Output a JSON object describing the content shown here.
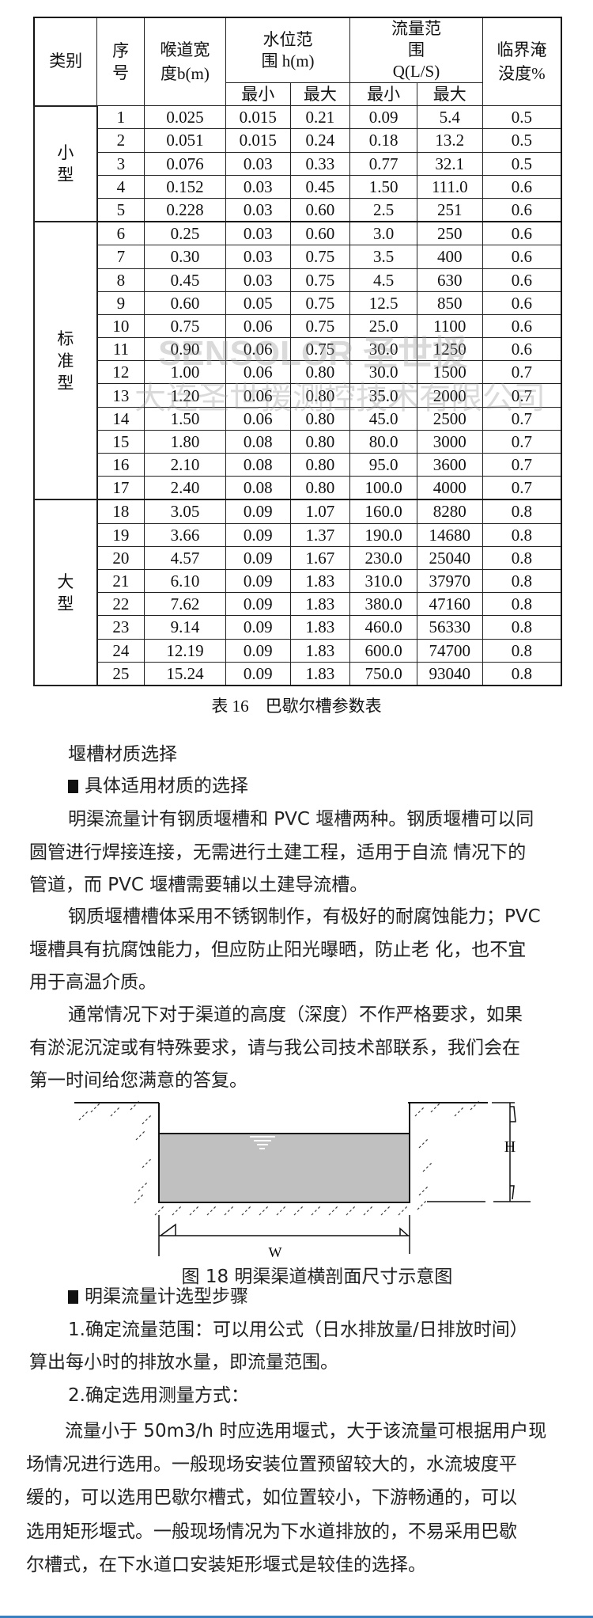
{
  "table": {
    "headers": {
      "category": "类别",
      "seq": "序号",
      "throat": "喉道宽度b(m)",
      "level_range": "水位范围 h(m)",
      "flow_range": "流量范围 Q(L/S)",
      "submergence": "临界淹没度%",
      "min": "最小",
      "max": "最大"
    },
    "groups": [
      {
        "label": "小 型",
        "rows": [
          [
            "1",
            "0.025",
            "0.015",
            "0.21",
            "0.09",
            "5.4",
            "0.5"
          ],
          [
            "2",
            "0.051",
            "0.015",
            "0.24",
            "0.18",
            "13.2",
            "0.5"
          ],
          [
            "3",
            "0.076",
            "0.03",
            "0.33",
            "0.77",
            "32.1",
            "0.5"
          ],
          [
            "4",
            "0.152",
            "0.03",
            "0.45",
            "1.50",
            "111.0",
            "0.6"
          ],
          [
            "5",
            "0.228",
            "0.03",
            "0.60",
            "2.5",
            "251",
            "0.6"
          ]
        ]
      },
      {
        "label": "标准型",
        "rows": [
          [
            "6",
            "0.25",
            "0.03",
            "0.60",
            "3.0",
            "250",
            "0.6"
          ],
          [
            "7",
            "0.30",
            "0.03",
            "0.75",
            "3.5",
            "400",
            "0.6"
          ],
          [
            "8",
            "0.45",
            "0.03",
            "0.75",
            "4.5",
            "630",
            "0.6"
          ],
          [
            "9",
            "0.60",
            "0.05",
            "0.75",
            "12.5",
            "850",
            "0.6"
          ],
          [
            "10",
            "0.75",
            "0.06",
            "0.75",
            "25.0",
            "1100",
            "0.6"
          ],
          [
            "11",
            "0.90",
            "0.06",
            "0.75",
            "30.0",
            "1250",
            "0.6"
          ],
          [
            "12",
            "1.00",
            "0.06",
            "0.80",
            "30.0",
            "1500",
            "0.7"
          ],
          [
            "13",
            "1.20",
            "0.06",
            "0.80",
            "35.0",
            "2000",
            "0.7"
          ],
          [
            "14",
            "1.50",
            "0.06",
            "0.80",
            "45.0",
            "2500",
            "0.7"
          ],
          [
            "15",
            "1.80",
            "0.08",
            "0.80",
            "80.0",
            "3000",
            "0.7"
          ],
          [
            "16",
            "2.10",
            "0.08",
            "0.80",
            "95.0",
            "3600",
            "0.7"
          ],
          [
            "17",
            "2.40",
            "0.08",
            "0.80",
            "100.0",
            "4000",
            "0.7"
          ]
        ]
      },
      {
        "label": "大 型",
        "rows": [
          [
            "18",
            "3.05",
            "0.09",
            "1.07",
            "160.0",
            "8280",
            "0.8"
          ],
          [
            "19",
            "3.66",
            "0.09",
            "1.37",
            "190.0",
            "14680",
            "0.8"
          ],
          [
            "20",
            "4.57",
            "0.09",
            "1.67",
            "230.0",
            "25040",
            "0.8"
          ],
          [
            "21",
            "6.10",
            "0.09",
            "1.83",
            "310.0",
            "37970",
            "0.8"
          ],
          [
            "22",
            "7.62",
            "0.09",
            "1.83",
            "380.0",
            "47160",
            "0.8"
          ],
          [
            "23",
            "9.14",
            "0.09",
            "1.83",
            "460.0",
            "56330",
            "0.8"
          ],
          [
            "24",
            "12.19",
            "0.09",
            "1.83",
            "600.0",
            "74700",
            "0.8"
          ],
          [
            "25",
            "15.24",
            "0.09",
            "1.83",
            "750.0",
            "93040",
            "0.8"
          ]
        ]
      }
    ],
    "caption": "表 16　巴歇尔槽参数表"
  },
  "watermark": {
    "logo": "SENSOLOR 圣世援",
    "company": "大连圣世援测控技术有限公司"
  },
  "section1": {
    "title": "堰槽材质选择",
    "bullet": "具体适用材质的选择",
    "p1": [
      "明渠流量计有钢质堰槽和  PVC  堰槽两种。钢质堰槽可以同",
      "圆管进行焊接连接，无需进行土建工程，适用于自流  情况下的",
      "管道，而 PVC 堰槽需要辅以土建导流槽。"
    ],
    "p2": [
      "钢质堰槽槽体采用不锈钢制作，有极好的耐腐蚀能力；PVC",
      "堰槽具有抗腐蚀能力，但应防止阳光曝晒，防止老  化，也不宜",
      "用于高温介质。"
    ],
    "p3": [
      "通常情况下对于渠道的高度（深度）不作严格要求，如果",
      "有淤泥沉淀或有特殊要求，请与我公司技术部联系，我们会在",
      "第一时间给您满意的答复。"
    ]
  },
  "figure": {
    "label_h": "H",
    "label_w": "W",
    "caption": "图 18 明渠渠道横剖面尺寸示意图",
    "water_color": "#c0c0c0"
  },
  "section2": {
    "bullet": "明渠流量计选型步骤",
    "step1": [
      "1.确定流量范围：可以用公式（日水排放量/日排放时间）",
      "算出每小时的排放水量，即流量范围。"
    ],
    "step2_title": "2.确定选用测量方式：",
    "step2": [
      "流量小于 50m3/h 时应选用堰式，大于该流量可根据用户现",
      "场情况进行选用。一般现场安装位置预留较大的，水流坡度平",
      "缓的，可以选用巴歇尔槽式，如位置较小，下游畅通的，可以",
      "选用矩形堰式。一般现场情况为下水道排放的，不易采用巴歇",
      "尔槽式，在下水道口安装矩形堰式是较佳的选择。"
    ]
  },
  "accent_color": "#3a7fc0"
}
